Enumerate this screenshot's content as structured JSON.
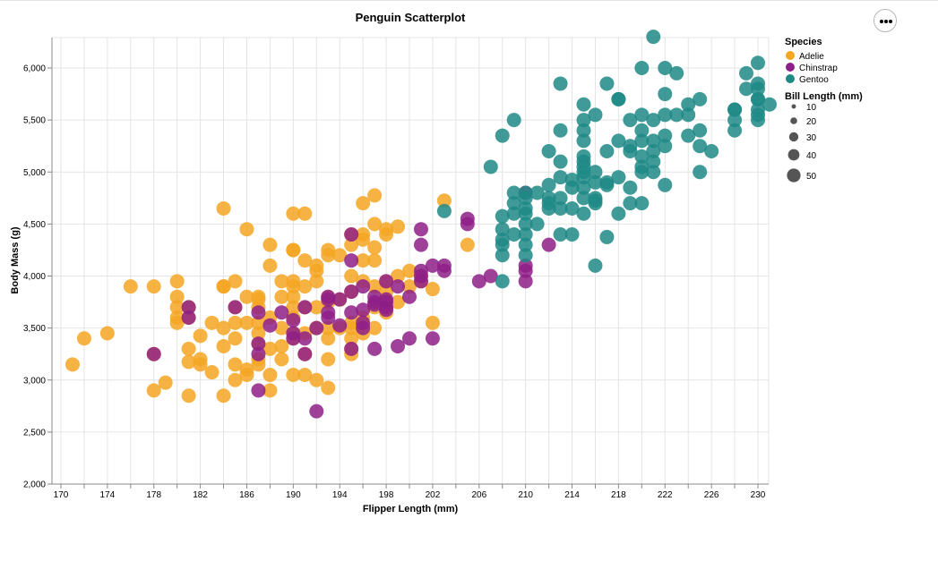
{
  "chart_data": {
    "type": "scatter",
    "title": "Penguin Scatterplot",
    "xlabel": "Flipper Length (mm)",
    "ylabel": "Body Mass (g)",
    "xlim": [
      170,
      231
    ],
    "ylim": [
      2000,
      6300
    ],
    "x_ticks": [
      "170",
      "174",
      "178",
      "182",
      "186",
      "190",
      "194",
      "198",
      "202",
      "206",
      "210",
      "214",
      "218",
      "222",
      "226",
      "230"
    ],
    "y_ticks": [
      "2,000",
      "2,500",
      "3,000",
      "3,500",
      "4,000",
      "4,500",
      "5,000",
      "5,500",
      "6,000"
    ],
    "grid": true,
    "legend": {
      "placement": "right",
      "color_title": "Species",
      "size_title": "Bill Length (mm)",
      "size_labels": [
        "10",
        "20",
        "30",
        "40",
        "50"
      ]
    },
    "series": [
      {
        "name": "Adelie",
        "color": "#F5A623",
        "points": [
          [
            171,
            3150
          ],
          [
            172,
            3400
          ],
          [
            174,
            3450
          ],
          [
            176,
            3900
          ],
          [
            178,
            3900
          ],
          [
            178,
            2900
          ],
          [
            178,
            3250
          ],
          [
            179,
            2975
          ],
          [
            180,
            3950
          ],
          [
            180,
            3800
          ],
          [
            180,
            3600
          ],
          [
            180,
            3550
          ],
          [
            180,
            3700
          ],
          [
            181,
            2850
          ],
          [
            181,
            3300
          ],
          [
            181,
            3175
          ],
          [
            181,
            3600
          ],
          [
            181,
            3700
          ],
          [
            182,
            3200
          ],
          [
            182,
            3150
          ],
          [
            182,
            3425
          ],
          [
            183,
            3075
          ],
          [
            183,
            3550
          ],
          [
            184,
            4650
          ],
          [
            184,
            3900
          ],
          [
            184,
            3900
          ],
          [
            184,
            3500
          ],
          [
            184,
            3325
          ],
          [
            184,
            2850
          ],
          [
            185,
            3950
          ],
          [
            185,
            3700
          ],
          [
            185,
            3550
          ],
          [
            185,
            3400
          ],
          [
            185,
            3150
          ],
          [
            185,
            3000
          ],
          [
            186,
            3800
          ],
          [
            186,
            3550
          ],
          [
            186,
            3100
          ],
          [
            186,
            3050
          ],
          [
            186,
            4450
          ],
          [
            187,
            3800
          ],
          [
            187,
            3775
          ],
          [
            187,
            3700
          ],
          [
            187,
            3550
          ],
          [
            187,
            3450
          ],
          [
            187,
            3350
          ],
          [
            187,
            3200
          ],
          [
            187,
            3150
          ],
          [
            188,
            4300
          ],
          [
            188,
            4100
          ],
          [
            188,
            3600
          ],
          [
            188,
            3300
          ],
          [
            188,
            3050
          ],
          [
            188,
            2900
          ],
          [
            189,
            3950
          ],
          [
            189,
            3800
          ],
          [
            189,
            3500
          ],
          [
            189,
            3325
          ],
          [
            189,
            3200
          ],
          [
            190,
            4600
          ],
          [
            190,
            4250
          ],
          [
            190,
            4250
          ],
          [
            190,
            3950
          ],
          [
            190,
            3900
          ],
          [
            190,
            3800
          ],
          [
            190,
            3700
          ],
          [
            190,
            3600
          ],
          [
            190,
            3450
          ],
          [
            190,
            3400
          ],
          [
            190,
            3050
          ],
          [
            191,
            4600
          ],
          [
            191,
            4150
          ],
          [
            191,
            3900
          ],
          [
            191,
            3700
          ],
          [
            191,
            3450
          ],
          [
            191,
            3250
          ],
          [
            191,
            3050
          ],
          [
            192,
            4100
          ],
          [
            192,
            4050
          ],
          [
            192,
            3950
          ],
          [
            192,
            3700
          ],
          [
            192,
            3500
          ],
          [
            192,
            3000
          ],
          [
            193,
            4250
          ],
          [
            193,
            4200
          ],
          [
            193,
            3800
          ],
          [
            193,
            3750
          ],
          [
            193,
            3500
          ],
          [
            193,
            3400
          ],
          [
            193,
            3200
          ],
          [
            193,
            2925
          ],
          [
            194,
            4200
          ],
          [
            194,
            3775
          ],
          [
            194,
            3500
          ],
          [
            195,
            4400
          ],
          [
            195,
            4300
          ],
          [
            195,
            4000
          ],
          [
            195,
            3850
          ],
          [
            195,
            3550
          ],
          [
            195,
            3500
          ],
          [
            195,
            3400
          ],
          [
            195,
            3300
          ],
          [
            195,
            3250
          ],
          [
            196,
            4700
          ],
          [
            196,
            4400
          ],
          [
            196,
            4150
          ],
          [
            196,
            3950
          ],
          [
            196,
            3600
          ],
          [
            196,
            3450
          ],
          [
            196,
            4350
          ],
          [
            197,
            4775
          ],
          [
            197,
            4500
          ],
          [
            197,
            4275
          ],
          [
            197,
            4150
          ],
          [
            197,
            3900
          ],
          [
            197,
            3700
          ],
          [
            197,
            3500
          ],
          [
            198,
            4450
          ],
          [
            198,
            4400
          ],
          [
            198,
            3950
          ],
          [
            198,
            3850
          ],
          [
            198,
            3650
          ],
          [
            199,
            4475
          ],
          [
            199,
            4000
          ],
          [
            199,
            3750
          ],
          [
            200,
            4050
          ],
          [
            200,
            3900
          ],
          [
            201,
            4000
          ],
          [
            201,
            3950
          ],
          [
            202,
            3875
          ],
          [
            202,
            3550
          ],
          [
            203,
            4725
          ],
          [
            205,
            4300
          ]
        ]
      },
      {
        "name": "Chinstrap",
        "color": "#8E1F87",
        "points": [
          [
            178,
            3250
          ],
          [
            181,
            3600
          ],
          [
            181,
            3700
          ],
          [
            185,
            3700
          ],
          [
            187,
            3650
          ],
          [
            187,
            3350
          ],
          [
            187,
            3250
          ],
          [
            187,
            2900
          ],
          [
            188,
            3525
          ],
          [
            189,
            3650
          ],
          [
            190,
            3575
          ],
          [
            190,
            3450
          ],
          [
            190,
            3400
          ],
          [
            191,
            3700
          ],
          [
            191,
            3400
          ],
          [
            191,
            3250
          ],
          [
            192,
            3500
          ],
          [
            192,
            2700
          ],
          [
            193,
            3800
          ],
          [
            193,
            3775
          ],
          [
            193,
            3650
          ],
          [
            193,
            3600
          ],
          [
            194,
            3775
          ],
          [
            194,
            3525
          ],
          [
            195,
            4400
          ],
          [
            195,
            4150
          ],
          [
            195,
            3850
          ],
          [
            195,
            3650
          ],
          [
            195,
            3300
          ],
          [
            196,
            3900
          ],
          [
            196,
            3675
          ],
          [
            196,
            3550
          ],
          [
            196,
            3500
          ],
          [
            197,
            3800
          ],
          [
            197,
            3750
          ],
          [
            197,
            3725
          ],
          [
            197,
            3300
          ],
          [
            198,
            3950
          ],
          [
            198,
            3775
          ],
          [
            198,
            3750
          ],
          [
            198,
            3700
          ],
          [
            198,
            3675
          ],
          [
            199,
            3900
          ],
          [
            199,
            3325
          ],
          [
            200,
            3800
          ],
          [
            200,
            3400
          ],
          [
            201,
            4450
          ],
          [
            201,
            4300
          ],
          [
            201,
            4050
          ],
          [
            201,
            4000
          ],
          [
            201,
            3950
          ],
          [
            202,
            4100
          ],
          [
            202,
            3400
          ],
          [
            203,
            4100
          ],
          [
            203,
            4050
          ],
          [
            205,
            4550
          ],
          [
            205,
            4500
          ],
          [
            206,
            3950
          ],
          [
            207,
            4000
          ],
          [
            210,
            4800
          ],
          [
            210,
            4100
          ],
          [
            210,
            4050
          ],
          [
            210,
            3950
          ],
          [
            212,
            4300
          ]
        ]
      },
      {
        "name": "Gentoo",
        "color": "#1E8A86",
        "points": [
          [
            203,
            4625
          ],
          [
            207,
            5050
          ],
          [
            208,
            5350
          ],
          [
            208,
            4575
          ],
          [
            208,
            4450
          ],
          [
            208,
            4350
          ],
          [
            208,
            4300
          ],
          [
            208,
            4200
          ],
          [
            208,
            3950
          ],
          [
            209,
            5500
          ],
          [
            209,
            4800
          ],
          [
            209,
            4700
          ],
          [
            209,
            4600
          ],
          [
            209,
            4400
          ],
          [
            210,
            4800
          ],
          [
            210,
            4750
          ],
          [
            210,
            4650
          ],
          [
            210,
            4600
          ],
          [
            210,
            4500
          ],
          [
            210,
            4400
          ],
          [
            210,
            4300
          ],
          [
            210,
            4200
          ],
          [
            211,
            4800
          ],
          [
            211,
            4500
          ],
          [
            212,
            5200
          ],
          [
            212,
            4875
          ],
          [
            212,
            4750
          ],
          [
            212,
            4700
          ],
          [
            212,
            4650
          ],
          [
            213,
            5850
          ],
          [
            213,
            5400
          ],
          [
            213,
            5100
          ],
          [
            213,
            4950
          ],
          [
            213,
            4750
          ],
          [
            213,
            4650
          ],
          [
            213,
            4400
          ],
          [
            214,
            4925
          ],
          [
            214,
            4850
          ],
          [
            214,
            4650
          ],
          [
            214,
            4400
          ],
          [
            215,
            5650
          ],
          [
            215,
            5500
          ],
          [
            215,
            5400
          ],
          [
            215,
            5300
          ],
          [
            215,
            5150
          ],
          [
            215,
            5100
          ],
          [
            215,
            5050
          ],
          [
            215,
            5000
          ],
          [
            215,
            4950
          ],
          [
            215,
            4850
          ],
          [
            215,
            4750
          ],
          [
            215,
            4600
          ],
          [
            216,
            5550
          ],
          [
            216,
            5000
          ],
          [
            216,
            4900
          ],
          [
            216,
            4750
          ],
          [
            216,
            4725
          ],
          [
            216,
            4700
          ],
          [
            216,
            4100
          ],
          [
            217,
            5850
          ],
          [
            217,
            5200
          ],
          [
            217,
            4900
          ],
          [
            217,
            4875
          ],
          [
            217,
            4375
          ],
          [
            218,
            5700
          ],
          [
            218,
            5700
          ],
          [
            218,
            5300
          ],
          [
            218,
            4950
          ],
          [
            218,
            4600
          ],
          [
            219,
            5500
          ],
          [
            219,
            5250
          ],
          [
            219,
            5200
          ],
          [
            219,
            4850
          ],
          [
            219,
            4700
          ],
          [
            220,
            6000
          ],
          [
            220,
            5550
          ],
          [
            220,
            5400
          ],
          [
            220,
            5300
          ],
          [
            220,
            5150
          ],
          [
            220,
            5050
          ],
          [
            220,
            5000
          ],
          [
            220,
            4700
          ],
          [
            221,
            6300
          ],
          [
            221,
            5500
          ],
          [
            221,
            5300
          ],
          [
            221,
            5200
          ],
          [
            221,
            5100
          ],
          [
            221,
            5000
          ],
          [
            222,
            6000
          ],
          [
            222,
            5750
          ],
          [
            222,
            5550
          ],
          [
            222,
            5350
          ],
          [
            222,
            5250
          ],
          [
            222,
            4875
          ],
          [
            223,
            5950
          ],
          [
            223,
            5550
          ],
          [
            224,
            5650
          ],
          [
            224,
            5550
          ],
          [
            224,
            5350
          ],
          [
            225,
            5700
          ],
          [
            225,
            5400
          ],
          [
            225,
            5250
          ],
          [
            225,
            5000
          ],
          [
            226,
            5200
          ],
          [
            228,
            5600
          ],
          [
            228,
            5600
          ],
          [
            228,
            5500
          ],
          [
            228,
            5400
          ],
          [
            229,
            5950
          ],
          [
            229,
            5800
          ],
          [
            230,
            6050
          ],
          [
            230,
            5850
          ],
          [
            230,
            5800
          ],
          [
            230,
            5700
          ],
          [
            230,
            5700
          ],
          [
            230,
            5600
          ],
          [
            230,
            5550
          ],
          [
            230,
            5500
          ],
          [
            231,
            5650
          ]
        ]
      }
    ]
  },
  "menu": {
    "icon": "more-options-icon"
  }
}
